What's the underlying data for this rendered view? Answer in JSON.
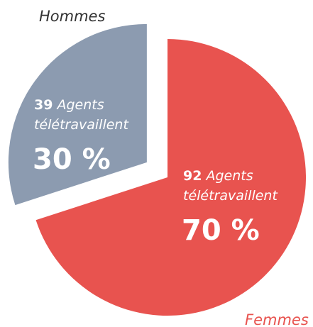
{
  "chart_data": {
    "type": "pie",
    "categories": [
      "Hommes",
      "Femmes"
    ],
    "values": [
      30,
      70
    ],
    "value_labels": [
      "30 %",
      "70 %"
    ],
    "colors": [
      "#8c9bb0",
      "#e8534f"
    ],
    "counts": [
      39,
      92
    ],
    "count_text": [
      "Agents",
      "télétravaillent"
    ]
  }
}
